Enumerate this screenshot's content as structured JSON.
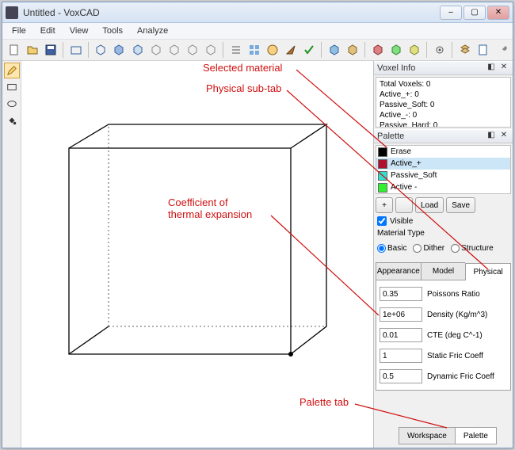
{
  "window": {
    "title": "Untitled - VoxCAD"
  },
  "menu": {
    "file": "File",
    "edit": "Edit",
    "view": "View",
    "tools": "Tools",
    "analyze": "Analyze"
  },
  "voxel_info": {
    "header": "Voxel Info",
    "lines": {
      "total": "Total Voxels: 0",
      "active_plus": "Active_+: 0",
      "passive_soft": "Passive_Soft: 0",
      "active_minus": "Active_-: 0",
      "passive_hard": "Passive_Hard: 0"
    }
  },
  "palette": {
    "header": "Palette",
    "materials": [
      {
        "label": "Erase",
        "color": "#000000",
        "selected": false
      },
      {
        "label": "Active_+",
        "color": "#b01030",
        "selected": true
      },
      {
        "label": "Passive_Soft",
        "color": "#30e0d0",
        "selected": false
      },
      {
        "label": "Active -",
        "color": "#30f030",
        "selected": false
      }
    ],
    "buttons": {
      "plus": "+",
      "minus": "",
      "load": "Load",
      "save": "Save"
    },
    "visible_label": "Visible",
    "visible_checked": true,
    "material_type_label": "Material Type",
    "type_options": {
      "basic": {
        "label": "Basic",
        "checked": true
      },
      "dither": {
        "label": "Dither",
        "checked": false
      },
      "structure": {
        "label": "Structure",
        "checked": false
      }
    },
    "sub_tabs": {
      "appearance": "Appearance",
      "model": "Model",
      "physical": "Physical"
    },
    "active_sub_tab": "physical",
    "physical": {
      "poisson": {
        "value": "0.35",
        "label": "Poissons Ratio"
      },
      "density": {
        "value": "1e+06",
        "label": "Density (Kg/m^3)"
      },
      "cte": {
        "value": "0.01",
        "label": "CTE (deg C^-1)"
      },
      "sfric": {
        "value": "1",
        "label": "Static Fric Coeff"
      },
      "dfric": {
        "value": "0.5",
        "label": "Dynamic Fric Coeff"
      }
    }
  },
  "bottom_tabs": {
    "workspace": "Workspace",
    "palette": "Palette"
  },
  "annotations": {
    "selected_material": "Selected material",
    "physical_subtab": "Physical sub-tab",
    "cte": "Coefficient of\nthermal expansion",
    "palette_tab": "Palette tab"
  },
  "colors": {
    "anno": "#d01010"
  }
}
